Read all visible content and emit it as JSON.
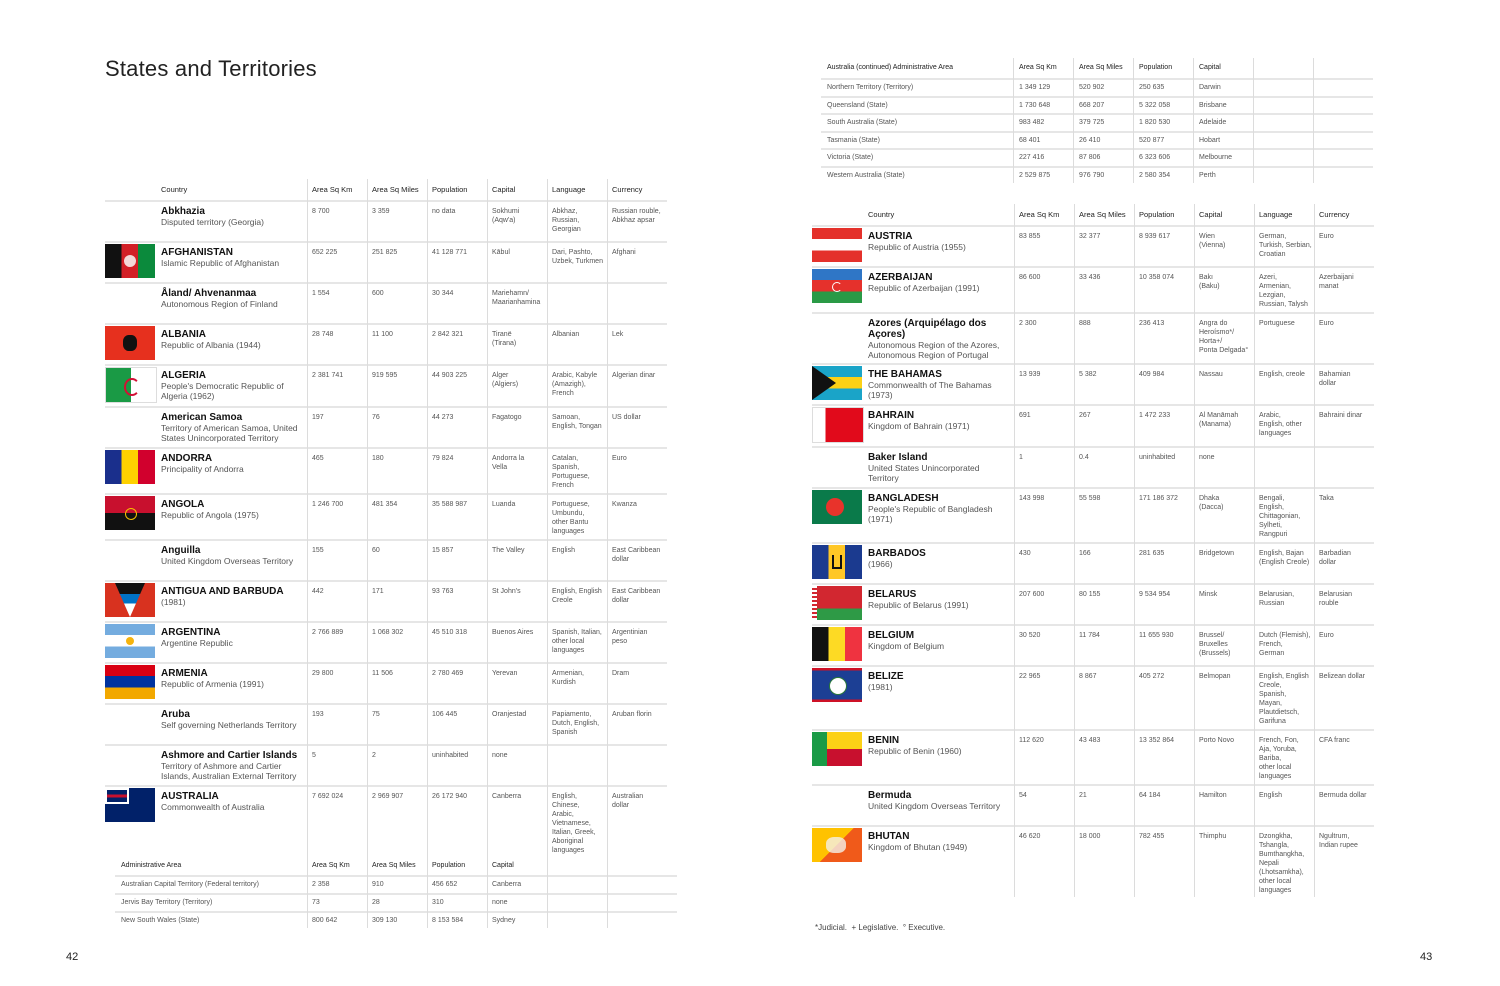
{
  "left_page": {
    "title": "States and Territories",
    "page_number": "42",
    "headers": [
      "Country",
      "Area Sq Km",
      "Area Sq Miles",
      "Population",
      "Capital",
      "Language",
      "Currency"
    ],
    "rows": [
      {
        "flag": "",
        "name": "Abkhazia",
        "sub": "Disputed territory (Georgia)",
        "km": "8 700",
        "mi": "3 359",
        "pop": "no data",
        "cap": "Sokhumi\n(Aqw'a)",
        "lang": "Abkhaz,\nRussian,\nGeorgian",
        "cur": "Russian rouble,\nAbkhaz apsar"
      },
      {
        "flag": "afghanistan",
        "name": "AFGHANISTAN",
        "sub": "Islamic Republic of Afghanistan",
        "km": "652 225",
        "mi": "251 825",
        "pop": "41 128 771",
        "cap": "Kābul",
        "lang": "Dari, Pashto,\nUzbek, Turkmen",
        "cur": "Afghani"
      },
      {
        "flag": "",
        "name": "Åland/ Ahvenanmaa",
        "sub": "Autonomous Region of Finland",
        "km": "1 554",
        "mi": "600",
        "pop": "30 344",
        "cap": "Mariehamn/\nMaarianhamina",
        "lang": "",
        "cur": ""
      },
      {
        "flag": "albania",
        "name": "ALBANIA",
        "sub": "Republic of Albania (1944)",
        "km": "28 748",
        "mi": "11 100",
        "pop": "2 842 321",
        "cap": "Tiranë\n(Tirana)",
        "lang": "Albanian",
        "cur": "Lek"
      },
      {
        "flag": "algeria",
        "name": "ALGERIA",
        "sub": "People's Democratic Republic of\nAlgeria (1962)",
        "km": "2 381 741",
        "mi": "919 595",
        "pop": "44 903 225",
        "cap": "Alger\n(Algiers)",
        "lang": "Arabic, Kabyle\n(Amazigh),\nFrench",
        "cur": "Algerian dinar"
      },
      {
        "flag": "",
        "name": "American Samoa",
        "sub": "Territory of American Samoa, United\nStates Unincorporated Territory",
        "km": "197",
        "mi": "76",
        "pop": "44 273",
        "cap": "Fagatogo",
        "lang": "Samoan,\nEnglish, Tongan",
        "cur": "US dollar"
      },
      {
        "flag": "andorra",
        "name": "ANDORRA",
        "sub": "Principality of Andorra",
        "km": "465",
        "mi": "180",
        "pop": "79 824",
        "cap": "Andorra la\nVella",
        "lang": "Catalan,\nSpanish,\nPortuguese,\nFrench",
        "cur": "Euro"
      },
      {
        "flag": "angola",
        "name": "ANGOLA",
        "sub": "Republic of Angola (1975)",
        "km": "1 246 700",
        "mi": "481 354",
        "pop": "35 588 987",
        "cap": "Luanda",
        "lang": "Portuguese,\nUmbundu,\nother Bantu\nlanguages",
        "cur": "Kwanza"
      },
      {
        "flag": "",
        "name": "Anguilla",
        "sub": "United Kingdom Overseas Territory",
        "km": "155",
        "mi": "60",
        "pop": "15 857",
        "cap": "The Valley",
        "lang": "English",
        "cur": "East Caribbean\ndollar"
      },
      {
        "flag": "antigua",
        "name": "ANTIGUA AND BARBUDA",
        "sub": "(1981)",
        "km": "442",
        "mi": "171",
        "pop": "93 763",
        "cap": "St John's",
        "lang": "English, English\nCreole",
        "cur": "East Caribbean\ndollar"
      },
      {
        "flag": "argentina",
        "name": "ARGENTINA",
        "sub": "Argentine Republic",
        "km": "2 766 889",
        "mi": "1 068 302",
        "pop": "45 510 318",
        "cap": "Buenos Aires",
        "lang": "Spanish, Italian,\nother local\nlanguages",
        "cur": "Argentinian\npeso"
      },
      {
        "flag": "armenia",
        "name": "ARMENIA",
        "sub": "Republic of Armenia (1991)",
        "km": "29 800",
        "mi": "11 506",
        "pop": "2 780 469",
        "cap": "Yerevan",
        "lang": "Armenian,\nKurdish",
        "cur": "Dram"
      },
      {
        "flag": "",
        "name": "Aruba",
        "sub": "Self governing Netherlands Territory",
        "km": "193",
        "mi": "75",
        "pop": "106 445",
        "cap": "Oranjestad",
        "lang": "Papiamento,\nDutch, English,\nSpanish",
        "cur": "Aruban florin"
      },
      {
        "flag": "",
        "name": "Ashmore and Cartier Islands",
        "sub": "Territory of Ashmore and Cartier\nIslands, Australian External Territory",
        "km": "5",
        "mi": "2",
        "pop": "uninhabited",
        "cap": "none",
        "lang": "",
        "cur": ""
      },
      {
        "flag": "australia",
        "name": "AUSTRALIA",
        "sub": "Commonwealth of Australia",
        "km": "7 692 024",
        "mi": "2 969 907",
        "pop": "26 172 940",
        "cap": "Canberra",
        "lang": "English,\nChinese,\nArabic,\nVietnamese,\nItalian, Greek,\nAboriginal\nlanguages",
        "cur": "Australian\ndollar"
      }
    ],
    "admin_headers": [
      "Administrative Area",
      "Area Sq Km",
      "Area Sq Miles",
      "Population",
      "Capital"
    ],
    "admin_rows": [
      {
        "area": "Australian Capital Territory (Federal territory)",
        "km": "2 358",
        "mi": "910",
        "pop": "456 652",
        "cap": "Canberra"
      },
      {
        "area": "Jervis Bay Territory (Territory)",
        "km": "73",
        "mi": "28",
        "pop": "310",
        "cap": "none"
      },
      {
        "area": "New South Wales (State)",
        "km": "800 642",
        "mi": "309 130",
        "pop": "8 153 584",
        "cap": "Sydney"
      }
    ]
  },
  "right_page": {
    "page_number": "43",
    "admin_headers": [
      "Australia (continued) Administrative Area",
      "Area Sq Km",
      "Area Sq Miles",
      "Population",
      "Capital"
    ],
    "admin_rows": [
      {
        "area": "Northern Territory (Territory)",
        "km": "1 349 129",
        "mi": "520 902",
        "pop": "250 635",
        "cap": "Darwin"
      },
      {
        "area": "Queensland (State)",
        "km": "1 730 648",
        "mi": "668 207",
        "pop": "5 322 058",
        "cap": "Brisbane"
      },
      {
        "area": "South Australia (State)",
        "km": "983 482",
        "mi": "379 725",
        "pop": "1 820 530",
        "cap": "Adelaide"
      },
      {
        "area": "Tasmania (State)",
        "km": "68 401",
        "mi": "26 410",
        "pop": "520 877",
        "cap": "Hobart"
      },
      {
        "area": "Victoria (State)",
        "km": "227 416",
        "mi": "87 806",
        "pop": "6 323 606",
        "cap": "Melbourne"
      },
      {
        "area": "Western Australia (State)",
        "km": "2 529 875",
        "mi": "976 790",
        "pop": "2 580 354",
        "cap": "Perth"
      }
    ],
    "headers": [
      "Country",
      "Area Sq Km",
      "Area Sq Miles",
      "Population",
      "Capital",
      "Language",
      "Currency"
    ],
    "rows": [
      {
        "flag": "austria",
        "name": "AUSTRIA",
        "sub": "Republic of Austria (1955)",
        "km": "83 855",
        "mi": "32 377",
        "pop": "8 939 617",
        "cap": "Wien\n(Vienna)",
        "lang": "German,\nTurkish, Serbian,\nCroatian",
        "cur": "Euro"
      },
      {
        "flag": "azerbaijan",
        "name": "AZERBAIJAN",
        "sub": "Republic of Azerbaijan (1991)",
        "km": "86 600",
        "mi": "33 436",
        "pop": "10 358 074",
        "cap": "Bakı\n(Baku)",
        "lang": "Azeri,\nArmenian,\nLezgian,\nRussian, Talysh",
        "cur": "Azerbaijani\nmanat"
      },
      {
        "flag": "",
        "name": "Azores (Arquipélago dos Açores)",
        "sub": "Autonomous Region of the Azores,\nAutonomous Region of Portugal",
        "km": "2 300",
        "mi": "888",
        "pop": "236 413",
        "cap": "Angra do\nHeroísmo*/\nHorta+/\nPonta Delgada°",
        "lang": "Portuguese",
        "cur": "Euro"
      },
      {
        "flag": "bahamas",
        "name": "THE BAHAMAS",
        "sub": "Commonwealth of The Bahamas\n(1973)",
        "km": "13 939",
        "mi": "5 382",
        "pop": "409 984",
        "cap": "Nassau",
        "lang": "English, creole",
        "cur": "Bahamian\ndollar"
      },
      {
        "flag": "bahrain",
        "name": "BAHRAIN",
        "sub": "Kingdom of Bahrain (1971)",
        "km": "691",
        "mi": "267",
        "pop": "1 472 233",
        "cap": "Al Manāmah\n(Manama)",
        "lang": "Arabic,\nEnglish, other\nlanguages",
        "cur": "Bahraini dinar"
      },
      {
        "flag": "",
        "name": "Baker Island",
        "sub": "United States Unincorporated Territory",
        "km": "1",
        "mi": "0.4",
        "pop": "uninhabited",
        "cap": "none",
        "lang": "",
        "cur": ""
      },
      {
        "flag": "bangladesh",
        "name": "BANGLADESH",
        "sub": "People's Republic of Bangladesh\n(1971)",
        "km": "143 998",
        "mi": "55 598",
        "pop": "171 186 372",
        "cap": "Dhaka\n(Dacca)",
        "lang": "Bengali,\nEnglish,\nChittagonian,\nSylheti,\nRangpuri",
        "cur": "Taka"
      },
      {
        "flag": "barbados",
        "name": "BARBADOS",
        "sub": "(1966)",
        "km": "430",
        "mi": "166",
        "pop": "281 635",
        "cap": "Bridgetown",
        "lang": "English, Bajan\n(English Creole)",
        "cur": "Barbadian\ndollar"
      },
      {
        "flag": "belarus",
        "name": "BELARUS",
        "sub": "Republic of Belarus (1991)",
        "km": "207 600",
        "mi": "80 155",
        "pop": "9 534 954",
        "cap": "Minsk",
        "lang": "Belarusian,\nRussian",
        "cur": "Belarusian\nrouble"
      },
      {
        "flag": "belgium",
        "name": "BELGIUM",
        "sub": "Kingdom of Belgium",
        "km": "30 520",
        "mi": "11 784",
        "pop": "11 655 930",
        "cap": "Brussel/\nBruxelles\n(Brussels)",
        "lang": "Dutch (Flemish),\nFrench,\nGerman",
        "cur": "Euro"
      },
      {
        "flag": "belize",
        "name": "BELIZE",
        "sub": "(1981)",
        "km": "22 965",
        "mi": "8 867",
        "pop": "405 272",
        "cap": "Belmopan",
        "lang": "English, English\nCreole,\nSpanish,\nMayan,\nPlautdietsch,\nGarifuna",
        "cur": "Belizean dollar"
      },
      {
        "flag": "benin",
        "name": "BENIN",
        "sub": "Republic of Benin (1960)",
        "km": "112 620",
        "mi": "43 483",
        "pop": "13 352 864",
        "cap": "Porto Novo",
        "lang": "French, Fon,\nAja, Yoruba,\nBariba,\nother local\nlanguages",
        "cur": "CFA franc"
      },
      {
        "flag": "",
        "name": "Bermuda",
        "sub": "United Kingdom Overseas Territory",
        "km": "54",
        "mi": "21",
        "pop": "64 184",
        "cap": "Hamilton",
        "lang": "English",
        "cur": "Bermuda dollar"
      },
      {
        "flag": "bhutan",
        "name": "BHUTAN",
        "sub": "Kingdom of Bhutan (1949)",
        "km": "46 620",
        "mi": "18 000",
        "pop": "782 455",
        "cap": "Thimphu",
        "lang": "Dzongkha,\nTshangla,\nBumthangkha,\nNepali\n(Lhotsamkha),\nother local\nlanguages",
        "cur": "Ngultrum,\nIndian rupee"
      }
    ],
    "footnote": "*Judicial.  + Legislative.  ° Executive."
  }
}
